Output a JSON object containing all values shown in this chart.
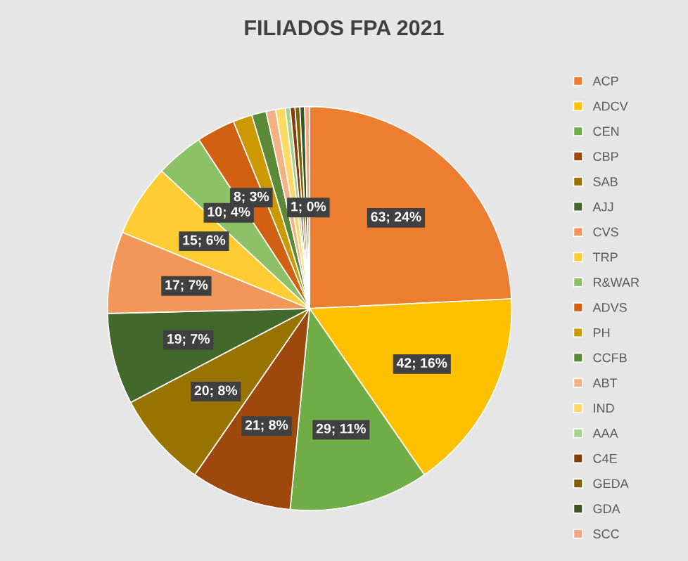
{
  "chart_data": {
    "type": "pie",
    "title": "FILIADOS FPA 2021",
    "categories": [
      "ACP",
      "ADCV",
      "CEN",
      "CBP",
      "SAB",
      "AJJ",
      "CVS",
      "TRP",
      "R&WAR",
      "ADVS",
      "PH",
      "CCFB",
      "ABT",
      "IND",
      "AAA",
      "C4E",
      "GEDA",
      "GDA",
      "SCC"
    ],
    "values": [
      63,
      42,
      29,
      21,
      20,
      19,
      17,
      15,
      10,
      8,
      4,
      3,
      2,
      2,
      1,
      1,
      1,
      1,
      1
    ],
    "colors": [
      "#ed7d31",
      "#ffc000",
      "#70ad47",
      "#9e480e",
      "#997300",
      "#43682b",
      "#f1975a",
      "#ffcd33",
      "#8cc168",
      "#d26012",
      "#cc9a00",
      "#5a8a38",
      "#f4b183",
      "#ffd966",
      "#a9d18e",
      "#843c0c",
      "#7f6000",
      "#375623",
      "#f4a582"
    ],
    "value_labels": [
      "63; 24%",
      "42; 16%",
      "29; 11%",
      "21; 8%",
      "20; 8%",
      "19; 7%",
      "17; 7%",
      "15; 6%",
      "10; 4%",
      "8; 3%",
      null,
      null,
      null,
      null,
      null,
      null,
      null,
      null,
      "1; 0%"
    ],
    "legend": "right"
  }
}
